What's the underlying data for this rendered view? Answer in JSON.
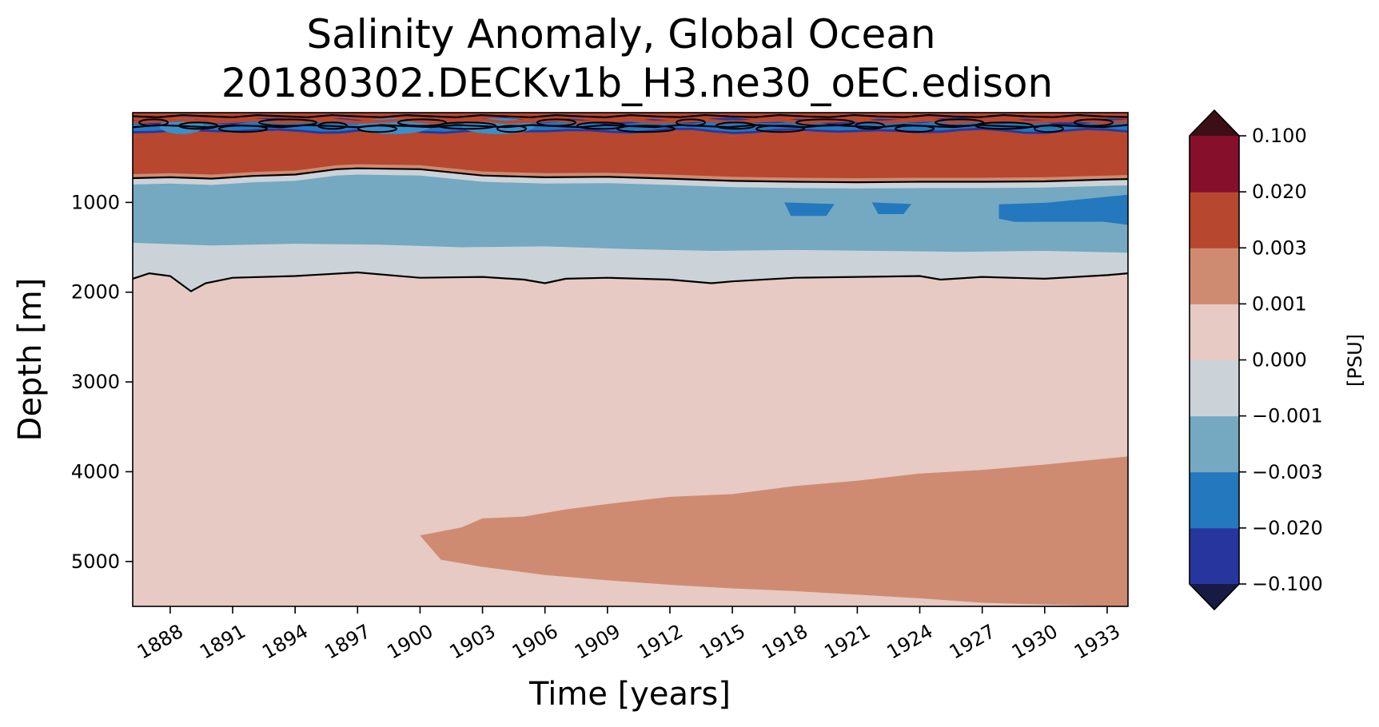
{
  "chart_data": {
    "type": "heatmap",
    "title_line1": "Salinity Anomaly, Global Ocean",
    "title_line2": "20180302.DECKv1b_H3.ne30_oEC.edison",
    "xlabel": "Time [years]",
    "ylabel": "Depth [m]",
    "xlim": [
      1886.2,
      1934
    ],
    "ylim": [
      5500,
      0
    ],
    "x_ticks": [
      1888,
      1891,
      1894,
      1897,
      1900,
      1903,
      1906,
      1909,
      1912,
      1915,
      1918,
      1921,
      1924,
      1927,
      1930,
      1933
    ],
    "y_ticks": [
      1000,
      2000,
      3000,
      4000,
      5000
    ],
    "colorbar": {
      "label": "[PSU]",
      "tick_labels": [
        "0.100",
        "0.020",
        "0.003",
        "0.001",
        "0.000",
        "−0.001",
        "−0.003",
        "−0.020",
        "−0.100"
      ],
      "colors": [
        "#26369e",
        "#2478be",
        "#74a9c1",
        "#cbd3d9",
        "#e6cac3",
        "#cf8b72",
        "#b7472f",
        "#860f2b"
      ],
      "extend_colors": {
        "below": "#161a44",
        "above": "#3d0f15"
      }
    },
    "regions": [
      {
        "band": "surface 0–250 m",
        "anomaly": "mixed, alternating 0.003 to 0.1 and −0.02 to −0.1"
      },
      {
        "band": "250–700 m",
        "anomaly": "0.003 to 0.02"
      },
      {
        "band": "700–1500 m",
        "anomaly": "−0.003 to −0.001, pockets of −0.02 to −0.003 after 1917"
      },
      {
        "band": "1500–1850 m",
        "anomaly": "−0.001 to 0.000"
      },
      {
        "band": "1850–5500 m",
        "anomaly": "0.000 to 0.001"
      },
      {
        "band": "abyssal wedge from 1900",
        "anomaly": "0.001 to 0.003"
      }
    ],
    "boundaries": {
      "upper_zero_contour": {
        "x": [
          1886.2,
          1888,
          1890,
          1892,
          1894,
          1896,
          1897,
          1900,
          1903,
          1906,
          1909,
          1912,
          1915,
          1918,
          1921,
          1924,
          1927,
          1930,
          1933,
          1934
        ],
        "depth": [
          730,
          720,
          735,
          705,
          690,
          630,
          620,
          630,
          700,
          720,
          715,
          735,
          760,
          770,
          775,
          770,
          770,
          765,
          745,
          740
        ]
      },
      "lower_zero_contour": {
        "x": [
          1886.2,
          1887,
          1888,
          1889,
          1889.7,
          1891,
          1894,
          1897,
          1900,
          1903,
          1905,
          1906,
          1907,
          1909,
          1912,
          1914,
          1915,
          1918,
          1921,
          1924,
          1925,
          1927,
          1930,
          1933,
          1934
        ],
        "depth": [
          1850,
          1790,
          1820,
          1990,
          1900,
          1840,
          1820,
          1780,
          1840,
          1830,
          1860,
          1900,
          1850,
          1840,
          1860,
          1900,
          1880,
          1840,
          1830,
          1820,
          1860,
          1830,
          1850,
          1810,
          1790
        ]
      },
      "warm_band_top": {
        "x": [
          1886.2,
          1889,
          1892,
          1895,
          1898,
          1900,
          1903,
          1906,
          1909,
          1912,
          1915,
          1918,
          1921,
          1924,
          1927,
          1930,
          1934
        ],
        "depth": [
          260,
          250,
          240,
          245,
          230,
          250,
          240,
          230,
          250,
          240,
          260,
          245,
          250,
          240,
          255,
          245,
          250
        ]
      },
      "mid_band_bottom": {
        "x": [
          1886.2,
          1890,
          1894,
          1898,
          1902,
          1906,
          1910,
          1914,
          1918,
          1922,
          1926,
          1930,
          1934
        ],
        "depth": [
          1450,
          1480,
          1460,
          1470,
          1500,
          1490,
          1520,
          1540,
          1530,
          1540,
          1550,
          1540,
          1560
        ]
      },
      "abyssal_wedge_top": {
        "x": [
          1900,
          1902,
          1903,
          1905,
          1907,
          1909,
          1912,
          1915,
          1918,
          1921,
          1924,
          1927,
          1930,
          1934
        ],
        "depth": [
          4710,
          4620,
          4520,
          4500,
          4420,
          4360,
          4280,
          4250,
          4160,
          4100,
          4020,
          3980,
          3920,
          3830
        ]
      },
      "abyssal_wedge_bottom": {
        "x": [
          1900,
          1901,
          1903,
          1906,
          1909,
          1912,
          1915,
          1918,
          1921,
          1924,
          1927,
          1930,
          1934
        ],
        "depth": [
          4710,
          4980,
          5060,
          5150,
          5210,
          5260,
          5300,
          5330,
          5370,
          5410,
          5460,
          5480,
          5500
        ]
      },
      "deep_blue_pockets": [
        {
          "x": [
            1917.5,
            1919.9
          ],
          "depth": [
            1000,
            1150
          ]
        },
        {
          "x": [
            1921.7,
            1923.6
          ],
          "depth": [
            1000,
            1130
          ]
        },
        {
          "x": [
            1927.8,
            1934
          ],
          "depth": [
            950,
            1250
          ]
        }
      ]
    }
  }
}
